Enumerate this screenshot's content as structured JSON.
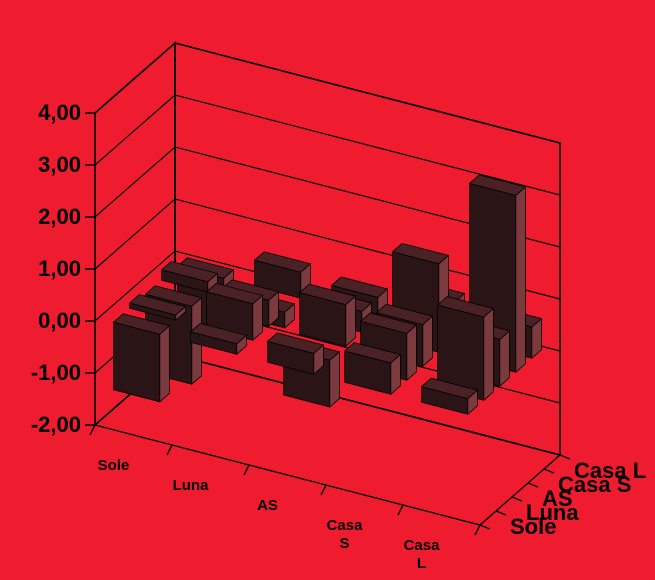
{
  "background_color": "#ee1c2e",
  "chart_data": {
    "type": "bar",
    "subtype": "3d-column-matrix",
    "title": "",
    "x_categories": [
      "Sole",
      "Luna",
      "AS",
      "Casa S",
      "Casa L"
    ],
    "x_tick_lines": [
      [
        "Sole"
      ],
      [
        "Luna"
      ],
      [
        "AS"
      ],
      [
        "Casa",
        "S"
      ],
      [
        "Casa",
        "L"
      ]
    ],
    "depth_categories": [
      "Sole",
      "Luna",
      "AS",
      "Casa S",
      "Casa L"
    ],
    "z_ticks": [
      "4,00",
      "3,00",
      "2,00",
      "1,00",
      "0,00",
      "-1,00",
      "-2,00"
    ],
    "zlim": [
      -2,
      4
    ],
    "grid": true,
    "legend": "none",
    "bar_color": "#2b1416",
    "highlight_color": "#7a3a3e",
    "values": [
      [
        -1.3,
        0.2,
        0.4,
        0.6,
        0.3
      ],
      [
        0.1,
        0.7,
        -0.9,
        0.9,
        1.6
      ],
      [
        -1.5,
        0.5,
        0.8,
        0.8,
        0.9
      ],
      [
        0.2,
        -0.3,
        0.4,
        1.7,
        3.4
      ],
      [
        -1.0,
        0.5,
        0.4,
        0.7,
        0.6
      ]
    ]
  }
}
